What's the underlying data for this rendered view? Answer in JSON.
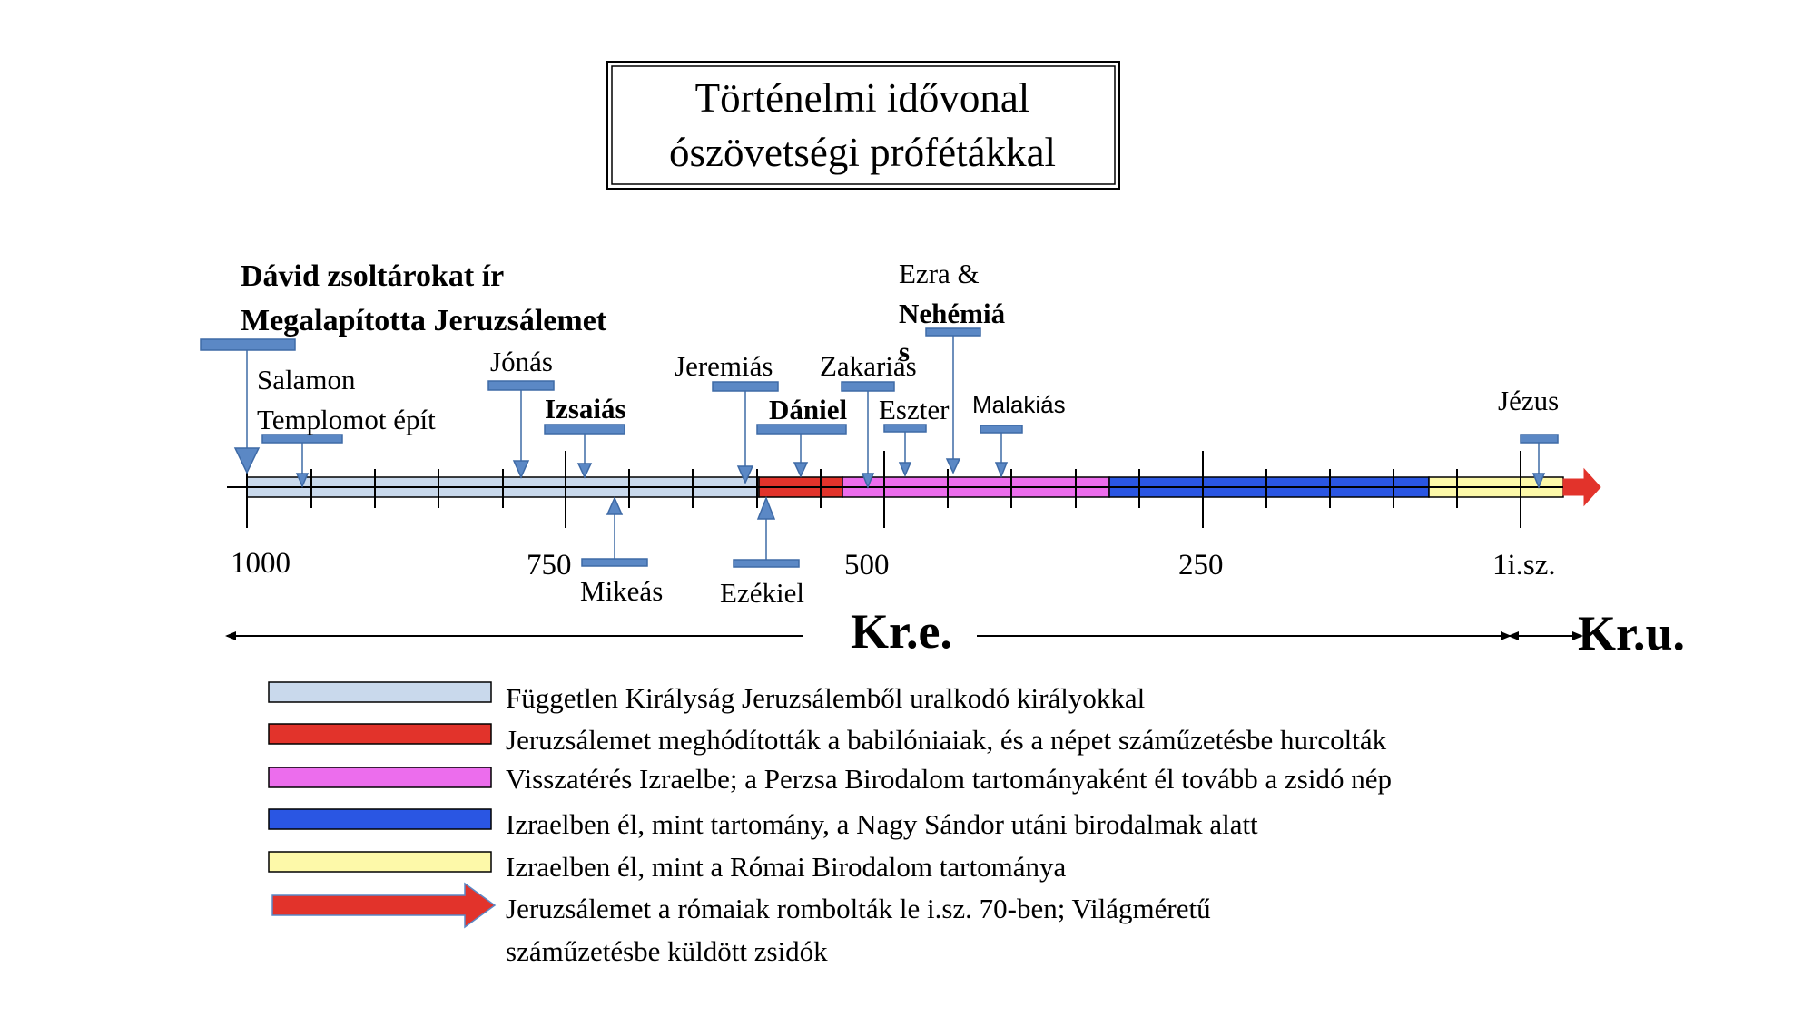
{
  "title": {
    "line1": "Történelmi idővonal",
    "line2": "ószövetségi prófétákkal"
  },
  "axis": {
    "ticks": [
      {
        "label": "1000",
        "value": 1000
      },
      {
        "label": "750",
        "value": 750
      },
      {
        "label": "500",
        "value": 500
      },
      {
        "label": "250",
        "value": 250
      },
      {
        "label": "1i.sz.",
        "value": 0
      }
    ],
    "era_bc": "Kr.e.",
    "era_ad": "Kr.u."
  },
  "events": {
    "david_line1": "Dávid zsoltárokat ír",
    "david_line2": "Megalapította Jeruzsálemet",
    "salamon_line1": "Salamon",
    "salamon_line2": "Templomot épít",
    "jonas": "Jónás",
    "izsaias": "Izsaiás",
    "mikeas": "Mikeás",
    "jeremias": "Jeremiás",
    "ezekiel": "Ezékiel",
    "daniel": "Dániel",
    "zakarias": "Zakariás",
    "eszter": "Eszter",
    "ezra_line1": "Ezra &",
    "ezra_line2": "Nehémiá",
    "ezra_line3": "s",
    "malakias": "Malakiás",
    "jezus": "Jézus"
  },
  "legend": [
    {
      "color": "#c9d9ec",
      "shape": "bar",
      "text": "Független Királyság Jeruzsálemből uralkodó királyokkal"
    },
    {
      "color": "#e2332b",
      "shape": "bar",
      "text": "Jeruzsálemet meghódították a babilóniaiak, és a népet száműzetésbe hurcolták"
    },
    {
      "color": "#ec6ded",
      "shape": "bar",
      "text": "Visszatérés Izraelbe; a Perzsa Birodalom tartományaként él tovább a zsidó nép"
    },
    {
      "color": "#2a56e3",
      "shape": "bar",
      "text": "Izraelben él, mint tartomány, a Nagy Sándor utáni birodalmak alatt"
    },
    {
      "color": "#fdf9a9",
      "shape": "bar",
      "text": "Izraelben él, mint a Római Birodalom tartománya"
    },
    {
      "color": "#e2332b",
      "shape": "arrow",
      "text": "Jeruzsálemet a rómaiak rombolták le i.sz. 70-ben; Világméretű",
      "text2": "száműzetésbe küldött zsidók"
    }
  ],
  "colors": {
    "marker": "#5b88c5",
    "marker_border": "#3e6aa6",
    "kingdom": "#c9d9ec",
    "exile": "#e2332b",
    "persian": "#ec6ded",
    "greek": "#2a56e3",
    "roman": "#fdf9a9"
  }
}
